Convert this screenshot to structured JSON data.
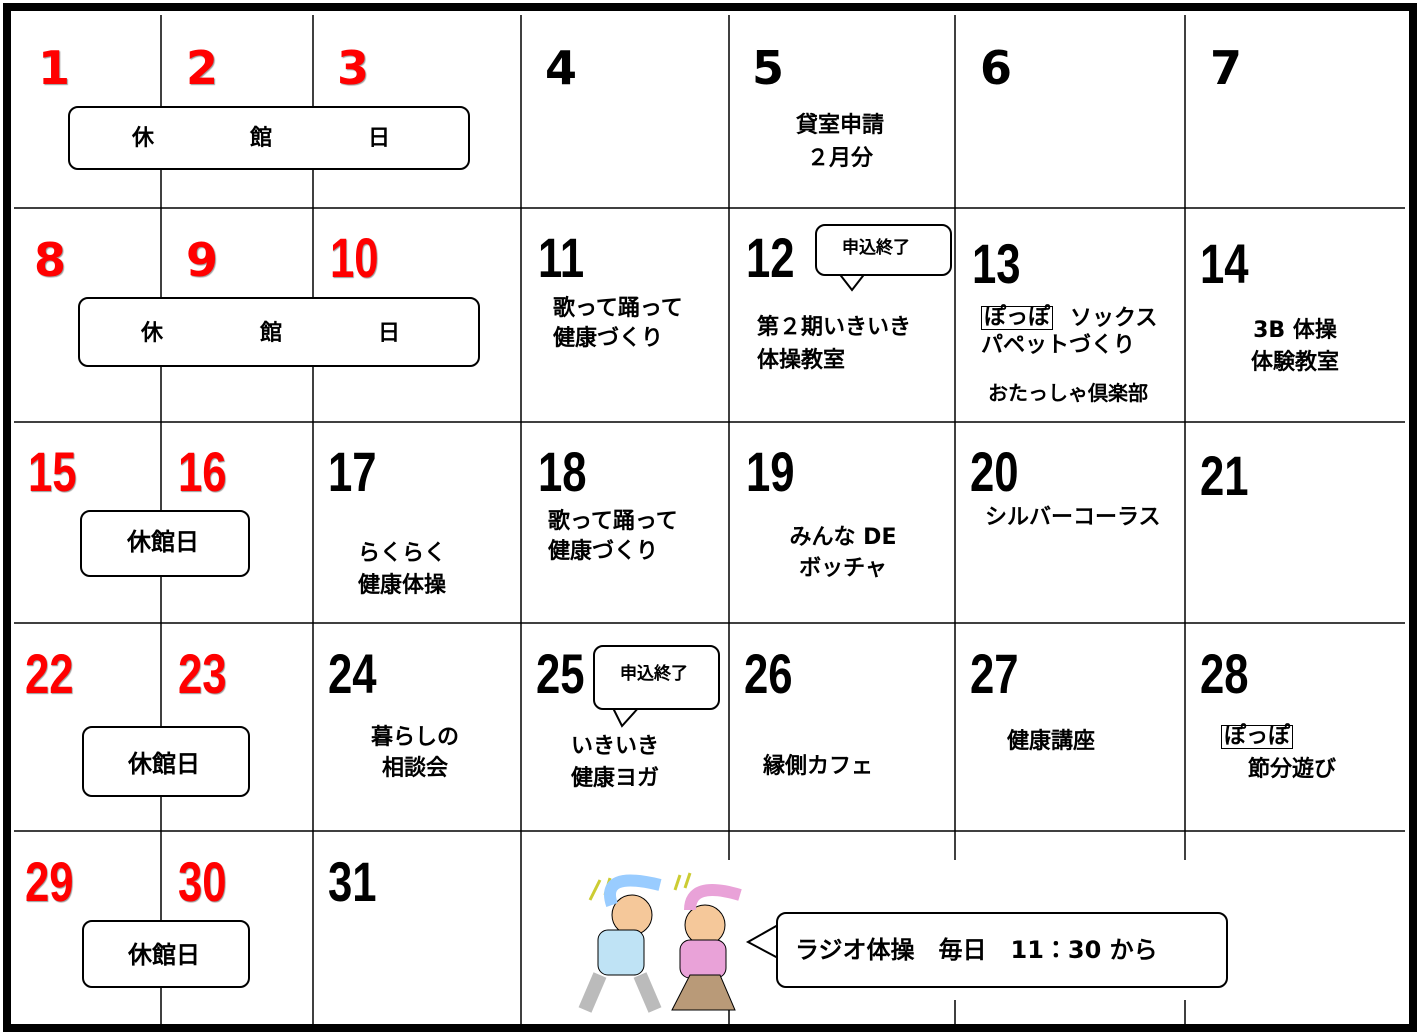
{
  "holiday_boxes": [
    {
      "chars": [
        "休",
        "館",
        "日"
      ]
    },
    {
      "chars": [
        "休",
        "館",
        "日"
      ]
    },
    {
      "text": "休館日"
    },
    {
      "text": "休館日"
    },
    {
      "text": "休館日"
    }
  ],
  "days": [
    {
      "number": "1"
    },
    {
      "number": "2"
    },
    {
      "number": "3"
    },
    {
      "number": "4"
    },
    {
      "number": "5",
      "events": [
        "貸室申請",
        "２月分"
      ]
    },
    {
      "number": "6"
    },
    {
      "number": "7"
    },
    {
      "number": "8"
    },
    {
      "number": "9"
    },
    {
      "number": "10"
    },
    {
      "number": "11",
      "events": [
        "歌って踊って",
        "健康づくり"
      ]
    },
    {
      "number": "12",
      "badge": "申込終了",
      "events": [
        "第２期いきいき",
        "体操教室"
      ]
    },
    {
      "number": "13",
      "tag": "ぽっぽ",
      "events": [
        "ソックス",
        "パペットづくり",
        "おたっしゃ倶楽部"
      ]
    },
    {
      "number": "14",
      "events": [
        "3B 体操",
        "体験教室"
      ]
    },
    {
      "number": "15"
    },
    {
      "number": "16"
    },
    {
      "number": "17",
      "events": [
        "らくらく",
        "健康体操"
      ]
    },
    {
      "number": "18",
      "events": [
        "歌って踊って",
        "健康づくり"
      ]
    },
    {
      "number": "19",
      "events": [
        "みんな DE",
        "ボッチャ"
      ]
    },
    {
      "number": "20",
      "events": [
        "シルバーコーラス"
      ]
    },
    {
      "number": "21"
    },
    {
      "number": "22"
    },
    {
      "number": "23"
    },
    {
      "number": "24",
      "events": [
        "暮らしの",
        "相談会"
      ]
    },
    {
      "number": "25",
      "badge": "申込終了",
      "events": [
        "いきいき",
        "健康ヨガ"
      ]
    },
    {
      "number": "26",
      "events": [
        "縁側カフェ"
      ]
    },
    {
      "number": "27",
      "events": [
        "健康講座"
      ]
    },
    {
      "number": "28",
      "tag": "ぽっぽ",
      "events": [
        "節分遊び"
      ]
    },
    {
      "number": "29"
    },
    {
      "number": "30"
    },
    {
      "number": "31"
    }
  ],
  "note": "ラジオ体操　毎日　11：30 から"
}
